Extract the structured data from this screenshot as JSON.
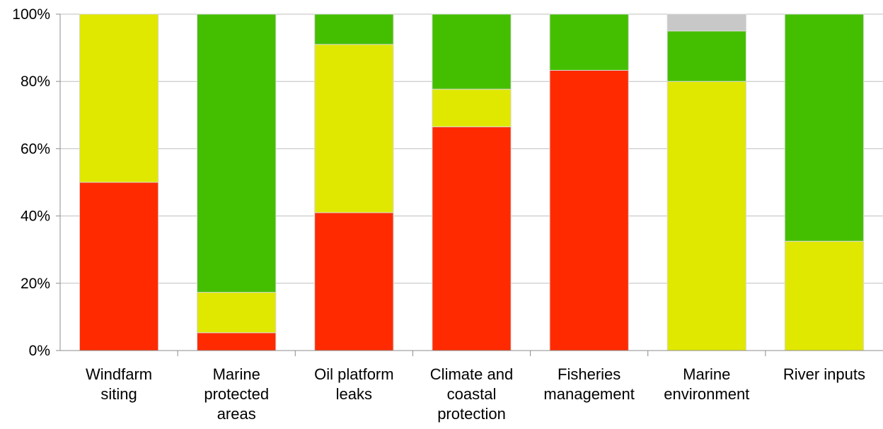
{
  "chart_data": {
    "type": "bar",
    "stacked": true,
    "percent": true,
    "categories": [
      [
        "Windfarm",
        "siting"
      ],
      [
        "Marine",
        "protected",
        "areas"
      ],
      [
        "Oil platform",
        "leaks"
      ],
      [
        "Climate and",
        "coastal",
        "protection"
      ],
      [
        "Fisheries",
        "management"
      ],
      [
        "Marine",
        "environment"
      ],
      [
        "River inputs"
      ]
    ],
    "series": [
      {
        "color": "#ff2a00",
        "values": [
          50,
          5.3,
          41,
          66.5,
          83.3,
          0,
          0
        ]
      },
      {
        "color": "#e0e800",
        "values": [
          50,
          12,
          50,
          11.2,
          0,
          80,
          32.5
        ]
      },
      {
        "color": "#44bf00",
        "values": [
          0,
          82.7,
          9,
          22.3,
          16.7,
          15,
          67.5
        ]
      },
      {
        "color": "#c8c8c8",
        "values": [
          0,
          0,
          0,
          0,
          0,
          5,
          0
        ]
      }
    ],
    "y_ticks": [
      "0%",
      "20%",
      "40%",
      "60%",
      "80%",
      "100%"
    ],
    "ylim": [
      0,
      100
    ],
    "grid": true,
    "legend": "none"
  }
}
